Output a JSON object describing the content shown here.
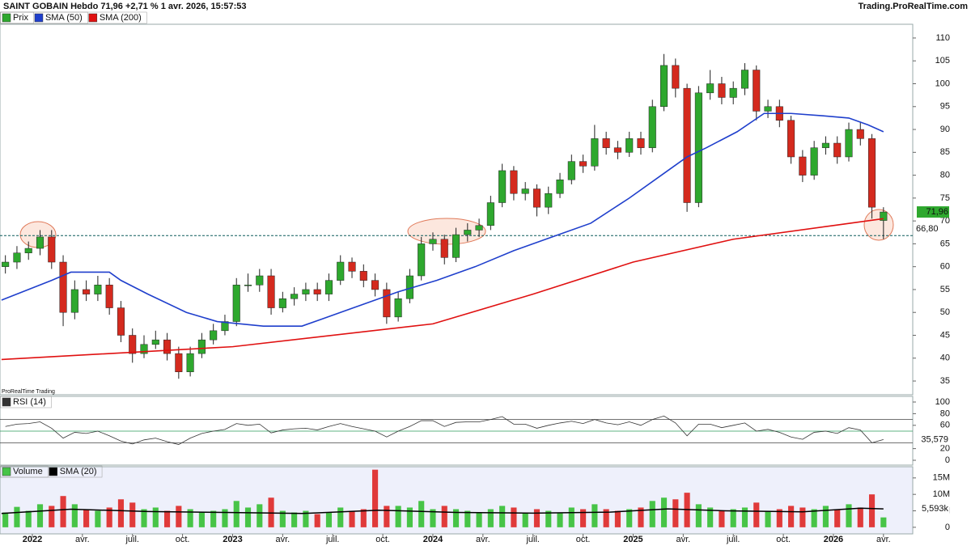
{
  "chart_data": [
    {
      "type": "candlestick",
      "title": "SAINT GOBAIN Hebdo 71,96 +2,71 % 1 avr. 2026, 15:57:53",
      "source": "Trading.ProRealTime.com",
      "watermark": "ProRealTime Trading",
      "name": "Prix",
      "colors": {
        "up": "#2ea82e",
        "down": "#d42a1e"
      },
      "x": [
        -7,
        -4,
        -1,
        2,
        5,
        8,
        11,
        14,
        17,
        20,
        23,
        26,
        29,
        32,
        35,
        38,
        41,
        44,
        47,
        50,
        53,
        56,
        59,
        62,
        65,
        68,
        71,
        74,
        77,
        80,
        83,
        86,
        89,
        92,
        95,
        98,
        101,
        104,
        107,
        110,
        113,
        116,
        119,
        122,
        125,
        128,
        131,
        134,
        137,
        140,
        143,
        146,
        149,
        152,
        155,
        158,
        161,
        164,
        167,
        170,
        173,
        176,
        179,
        182,
        185,
        188,
        191,
        194,
        197,
        200,
        203,
        206,
        209,
        212,
        215,
        218,
        221
      ],
      "open": [
        60,
        61,
        63,
        64,
        66.5,
        61,
        50,
        55,
        54,
        56,
        51,
        45,
        41,
        43,
        44,
        41,
        37,
        41,
        44,
        46,
        48,
        56,
        56,
        58,
        51,
        53,
        54,
        55,
        54,
        57,
        61,
        59,
        57,
        55,
        49,
        53,
        58,
        65,
        66,
        62,
        67,
        68,
        69,
        74,
        81,
        76,
        77,
        73,
        76,
        79,
        83,
        82,
        88,
        86,
        85,
        88,
        86,
        95,
        104,
        99,
        74,
        98,
        100,
        97,
        99,
        103,
        94,
        95,
        92,
        84,
        80,
        86,
        87,
        84,
        90,
        88,
        70.1
      ],
      "high": [
        62.5,
        64.5,
        65.5,
        68,
        68,
        62.5,
        57,
        57,
        58,
        57.5,
        52.5,
        46.5,
        45,
        46,
        45.5,
        42.5,
        42.5,
        45.5,
        47.5,
        49.5,
        57.5,
        58.5,
        59.5,
        59.5,
        54.5,
        55.5,
        56.5,
        56.5,
        58.5,
        62.5,
        62,
        60.5,
        58.5,
        56.5,
        54.5,
        59.5,
        66.5,
        67.5,
        67,
        68.5,
        69.5,
        70.5,
        75.5,
        82.5,
        82,
        78.5,
        78,
        77.5,
        80.5,
        84.5,
        84.5,
        91,
        89.5,
        87.5,
        89.5,
        89.5,
        96.5,
        106.5,
        105.5,
        100,
        99.5,
        103,
        101.5,
        100.5,
        104.5,
        104,
        96.5,
        96.5,
        93,
        85.5,
        87.5,
        88.5,
        88.5,
        91.5,
        91.5,
        89,
        73
      ],
      "low": [
        58.5,
        59.5,
        61.5,
        62.5,
        59.5,
        47,
        48.5,
        52.5,
        52.5,
        49.5,
        43.5,
        39,
        40,
        42,
        39.5,
        35.5,
        36,
        40,
        43,
        45,
        47,
        54.5,
        54.5,
        49.5,
        50,
        51.5,
        52.5,
        52.5,
        52.5,
        56,
        57.5,
        55.5,
        53.5,
        47.5,
        48,
        52,
        57,
        63.5,
        60.5,
        61,
        65.5,
        66.5,
        68,
        73,
        74.5,
        74.5,
        71,
        71.5,
        75,
        78,
        80.5,
        81,
        84.5,
        83.5,
        84,
        84.5,
        85,
        94,
        97,
        72,
        73,
        96.5,
        95.5,
        95.5,
        97.5,
        92,
        92.5,
        90.5,
        82.5,
        78.5,
        79,
        84.5,
        82.5,
        83,
        86.5,
        70.5,
        66
      ],
      "close": [
        61,
        63,
        64,
        66.5,
        61,
        50,
        55,
        54,
        56,
        51,
        45,
        41,
        43,
        44,
        41,
        37,
        41,
        44,
        46,
        48,
        56,
        56,
        58,
        51,
        53,
        54,
        55,
        54,
        57,
        61,
        59,
        57,
        55,
        49,
        53,
        58,
        65,
        66,
        62,
        67,
        68,
        69,
        74,
        81,
        76,
        77,
        73,
        76,
        79,
        83,
        82,
        88,
        86,
        85,
        88,
        86,
        95,
        104,
        99,
        74,
        98,
        100,
        97,
        99,
        103,
        94,
        95,
        92,
        84,
        80,
        86,
        87,
        84,
        90,
        88,
        73,
        71.96
      ],
      "lines": [
        {
          "name": "SMA (50)",
          "color": "#1f3fcc",
          "x": [
            -8,
            5,
            10,
            20,
            23,
            30,
            40,
            48,
            60,
            70,
            75,
            85,
            95,
            105,
            115,
            125,
            135,
            145,
            155,
            165,
            170,
            175,
            183,
            190,
            197,
            205,
            212,
            217,
            221
          ],
          "values": [
            52.7,
            57,
            58.8,
            58.8,
            57,
            54,
            50,
            48,
            47,
            47,
            48.5,
            51.5,
            54.5,
            57,
            60,
            63.5,
            66.5,
            69.5,
            75,
            81,
            84,
            86,
            89.5,
            93.5,
            93.5,
            93,
            92.5,
            91,
            89.5
          ]
        },
        {
          "name": "SMA (200)",
          "color": "#e01010",
          "x": [
            -8,
            52,
            104,
            130,
            156,
            182,
            208,
            221
          ],
          "values": [
            39.7,
            42.5,
            47.5,
            54,
            61,
            66,
            69,
            70.5
          ]
        }
      ],
      "level": {
        "value": 66.8,
        "label": "66,80"
      },
      "last": {
        "value": 71.96,
        "label": "71,96"
      },
      "xlim": [
        -8.4,
        228.6
      ],
      "ylim": [
        32,
        113
      ],
      "yticks": [
        35,
        40,
        45,
        50,
        55,
        60,
        65,
        70,
        75,
        80,
        85,
        90,
        95,
        100,
        105,
        110
      ]
    },
    {
      "type": "line",
      "name": "RSI (14)",
      "color": "#333333",
      "x": [
        -7,
        -4,
        -1,
        2,
        5,
        8,
        11,
        14,
        17,
        20,
        23,
        26,
        29,
        32,
        35,
        38,
        41,
        44,
        47,
        50,
        53,
        56,
        59,
        62,
        65,
        68,
        71,
        74,
        77,
        80,
        83,
        86,
        89,
        92,
        95,
        98,
        101,
        104,
        107,
        110,
        113,
        116,
        119,
        122,
        125,
        128,
        131,
        134,
        137,
        140,
        143,
        146,
        149,
        152,
        155,
        158,
        161,
        164,
        167,
        170,
        173,
        176,
        179,
        182,
        185,
        188,
        191,
        194,
        197,
        200,
        203,
        206,
        209,
        212,
        215,
        218,
        221
      ],
      "values": [
        58,
        62,
        63,
        66,
        55,
        38,
        48,
        46,
        50,
        42,
        33,
        28,
        35,
        38,
        32,
        27,
        38,
        46,
        50,
        53,
        63,
        60,
        62,
        47,
        52,
        54,
        55,
        52,
        58,
        63,
        58,
        54,
        50,
        40,
        50,
        58,
        68,
        68,
        58,
        65,
        66,
        66,
        70,
        75,
        62,
        62,
        55,
        60,
        64,
        67,
        63,
        70,
        64,
        61,
        66,
        60,
        70,
        76,
        64,
        42,
        62,
        62,
        56,
        60,
        64,
        50,
        53,
        48,
        40,
        36,
        48,
        50,
        46,
        56,
        52,
        30,
        35.579
      ],
      "levels": [
        30,
        50,
        70
      ],
      "last": {
        "value": 35.579,
        "label": "35,579"
      },
      "xlim": [
        -8.4,
        228.6
      ],
      "ylim": [
        -8.3,
        109.7
      ],
      "yticks": [
        0,
        20,
        60,
        80,
        100
      ]
    },
    {
      "type": "bar",
      "name": "Volume",
      "x": [
        -7,
        -4,
        -1,
        2,
        5,
        8,
        11,
        14,
        17,
        20,
        23,
        26,
        29,
        32,
        35,
        38,
        41,
        44,
        47,
        50,
        53,
        56,
        59,
        62,
        65,
        68,
        71,
        74,
        77,
        80,
        83,
        86,
        89,
        92,
        95,
        98,
        101,
        104,
        107,
        110,
        113,
        116,
        119,
        122,
        125,
        128,
        131,
        134,
        137,
        140,
        143,
        146,
        149,
        152,
        155,
        158,
        161,
        164,
        167,
        170,
        173,
        176,
        179,
        182,
        185,
        188,
        191,
        194,
        197,
        200,
        203,
        206,
        209,
        212,
        215,
        218,
        221
      ],
      "values": [
        4500000,
        6200000,
        5000000,
        7000000,
        6500000,
        9500000,
        7000000,
        5500000,
        5000000,
        6000000,
        8500000,
        7500000,
        5500000,
        6000000,
        5000000,
        6500000,
        5500000,
        4500000,
        5000000,
        5500000,
        8000000,
        6000000,
        7000000,
        9000000,
        5000000,
        4500000,
        5000000,
        4000000,
        4500000,
        6000000,
        5000000,
        5500000,
        17500000,
        6500000,
        6500000,
        6000000,
        8000000,
        5500000,
        6500000,
        5500000,
        5000000,
        4500000,
        5500000,
        6500000,
        6000000,
        4500000,
        5500000,
        5000000,
        4500000,
        6000000,
        5500000,
        7000000,
        5500000,
        5000000,
        5500000,
        6000000,
        8000000,
        9000000,
        8500000,
        10500000,
        7000000,
        6000000,
        5000000,
        5500000,
        6000000,
        7500000,
        5000000,
        5500000,
        6500000,
        6000000,
        5500000,
        6500000,
        5500000,
        7000000,
        6000000,
        10000000,
        3000000
      ],
      "line": {
        "name": "SMA (20)",
        "color": "#000000",
        "x": [
          -8,
          10,
          30,
          50,
          70,
          90,
          110,
          130,
          150,
          165,
          180,
          200,
          215,
          221
        ],
        "values": [
          4200000,
          5500000,
          4800000,
          4500000,
          4200000,
          5200000,
          4500000,
          4300000,
          4600000,
          5600000,
          5000000,
          4700000,
          5800000,
          5593000
        ]
      },
      "last": {
        "value": 5593000,
        "label": "5,593k"
      },
      "xlim": [
        -8.4,
        228.6
      ],
      "ylim": [
        -2000000,
        18400000
      ],
      "yticks": [
        0,
        {
          "value": 5000000,
          "label": "5M"
        },
        {
          "value": 10000000,
          "label": "10M"
        },
        {
          "value": 15000000,
          "label": "15M"
        }
      ],
      "xticks": [
        {
          "value": 0,
          "label": "2022"
        },
        {
          "value": 13,
          "label": "avr."
        },
        {
          "value": 26,
          "label": "juil."
        },
        {
          "value": 39,
          "label": "oct."
        },
        {
          "value": 52,
          "label": "2023"
        },
        {
          "value": 65,
          "label": "avr."
        },
        {
          "value": 78,
          "label": "juil."
        },
        {
          "value": 91,
          "label": "oct."
        },
        {
          "value": 104,
          "label": "2024"
        },
        {
          "value": 117,
          "label": "avr."
        },
        {
          "value": 130,
          "label": "juil."
        },
        {
          "value": 143,
          "label": "oct."
        },
        {
          "value": 156,
          "label": "2025"
        },
        {
          "value": 169,
          "label": "avr."
        },
        {
          "value": 182,
          "label": "juil."
        },
        {
          "value": 195,
          "label": "oct."
        },
        {
          "value": 208,
          "label": "2026"
        },
        {
          "value": 221,
          "label": "avr."
        }
      ]
    }
  ]
}
